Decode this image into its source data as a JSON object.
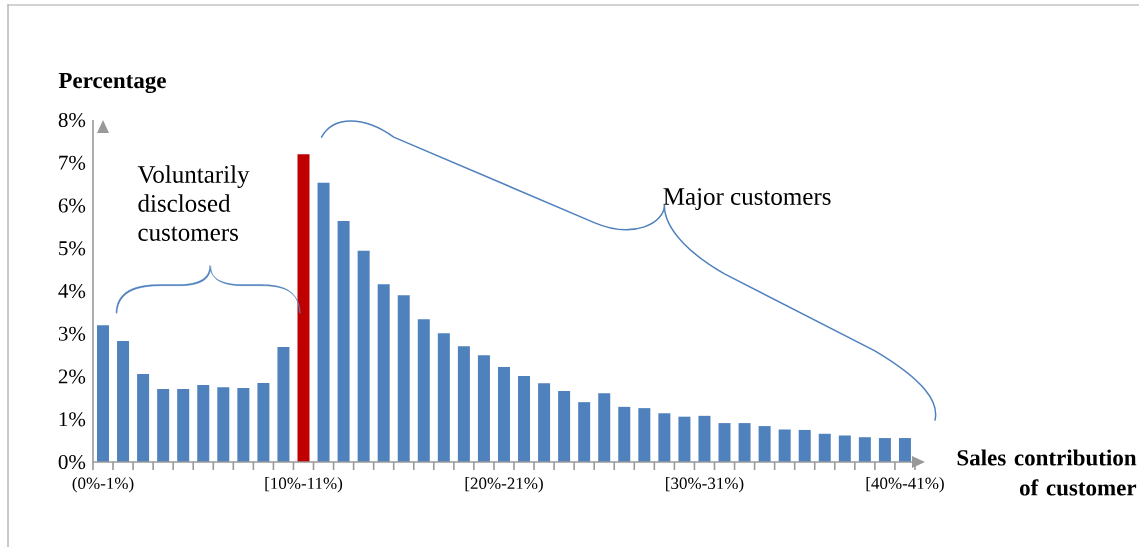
{
  "chart_data": {
    "type": "bar",
    "xlabel": "Sales contribution of customer",
    "ylabel": "Percentage",
    "categories": [
      "(0%-1%)",
      null,
      null,
      null,
      null,
      null,
      null,
      null,
      null,
      null,
      "[10%-11%)",
      null,
      null,
      null,
      null,
      null,
      null,
      null,
      null,
      null,
      "[20%-21%)",
      null,
      null,
      null,
      null,
      null,
      null,
      null,
      null,
      null,
      "[30%-31%)",
      null,
      null,
      null,
      null,
      null,
      null,
      null,
      null,
      null,
      "[40%-41%)"
    ],
    "values": [
      3.2,
      2.83,
      2.06,
      1.71,
      1.71,
      1.8,
      1.75,
      1.73,
      1.85,
      2.69,
      7.2,
      6.53,
      5.64,
      4.94,
      4.16,
      3.9,
      3.34,
      3.01,
      2.71,
      2.5,
      2.22,
      2.01,
      1.84,
      1.66,
      1.4,
      1.61,
      1.29,
      1.26,
      1.14,
      1.06,
      1.08,
      0.91,
      0.91,
      0.84,
      0.76,
      0.75,
      0.66,
      0.62,
      0.58,
      0.56,
      0.56
    ],
    "colors": [
      "#4f81bd",
      "#4f81bd",
      "#4f81bd",
      "#4f81bd",
      "#4f81bd",
      "#4f81bd",
      "#4f81bd",
      "#4f81bd",
      "#4f81bd",
      "#4f81bd",
      "#c00000",
      "#4f81bd",
      "#4f81bd",
      "#4f81bd",
      "#4f81bd",
      "#4f81bd",
      "#4f81bd",
      "#4f81bd",
      "#4f81bd",
      "#4f81bd",
      "#4f81bd",
      "#4f81bd",
      "#4f81bd",
      "#4f81bd",
      "#4f81bd",
      "#4f81bd",
      "#4f81bd",
      "#4f81bd",
      "#4f81bd",
      "#4f81bd",
      "#4f81bd",
      "#4f81bd",
      "#4f81bd",
      "#4f81bd",
      "#4f81bd",
      "#4f81bd",
      "#4f81bd",
      "#4f81bd",
      "#4f81bd",
      "#4f81bd",
      "#4f81bd"
    ],
    "ylim": [
      0,
      8
    ],
    "yticks": [
      {
        "value": 0,
        "label": "0%"
      },
      {
        "value": 1,
        "label": "1%"
      },
      {
        "value": 2,
        "label": "2%"
      },
      {
        "value": 3,
        "label": "3%"
      },
      {
        "value": 4,
        "label": "4%"
      },
      {
        "value": 5,
        "label": "5%"
      },
      {
        "value": 6,
        "label": "6%"
      },
      {
        "value": 7,
        "label": "7%"
      },
      {
        "value": 8,
        "label": "8%"
      }
    ],
    "annotations": [
      "Voluntarily disclosed customers",
      "Major customers"
    ],
    "grid": false
  }
}
